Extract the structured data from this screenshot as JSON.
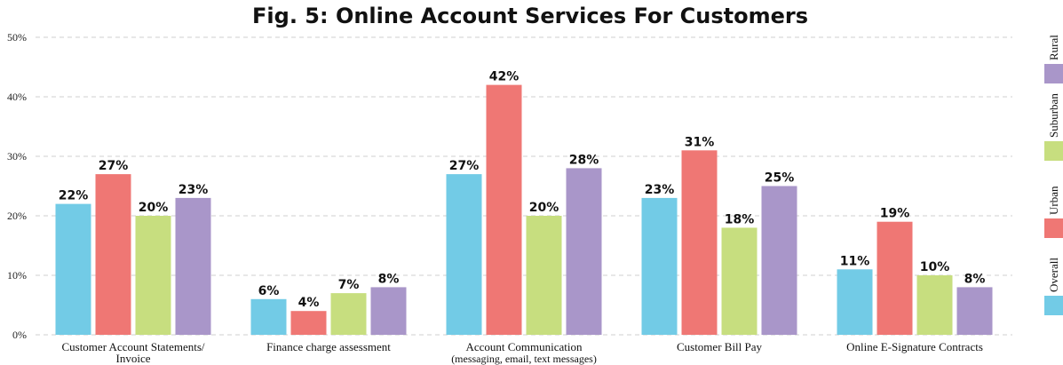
{
  "chart_data": {
    "type": "bar",
    "title": "Fig. 5: Online Account Services For Customers",
    "xlabel": "",
    "ylabel": "",
    "ylim": [
      0,
      50
    ],
    "yticks": [
      "0%",
      "10%",
      "20%",
      "30%",
      "40%",
      "50%"
    ],
    "grid": true,
    "legend_position": "right",
    "categories": [
      {
        "line1": "Customer Account Statements/",
        "line2": "Invoice"
      },
      {
        "line1": "Finance charge assessment",
        "line2": ""
      },
      {
        "line1": "Account Communication",
        "line2": "(messaging, email, text messages)"
      },
      {
        "line1": "Customer Bill Pay",
        "line2": ""
      },
      {
        "line1": "Online E-Signature Contracts",
        "line2": ""
      }
    ],
    "series": [
      {
        "name": "Overall",
        "color": "#72cbe6",
        "values": [
          22,
          6,
          27,
          23,
          11
        ],
        "labels": [
          "22%",
          "6%",
          "27%",
          "23%",
          "11%"
        ]
      },
      {
        "name": "Urban",
        "color": "#ef7774",
        "values": [
          27,
          4,
          42,
          31,
          19
        ],
        "labels": [
          "27%",
          "4%",
          "42%",
          "31%",
          "19%"
        ]
      },
      {
        "name": "Suburban",
        "color": "#c7de7f",
        "values": [
          20,
          7,
          20,
          18,
          10
        ],
        "labels": [
          "20%",
          "7%",
          "20%",
          "18%",
          "10%"
        ]
      },
      {
        "name": "Rural",
        "color": "#a996c9",
        "values": [
          23,
          8,
          28,
          25,
          8
        ],
        "labels": [
          "23%",
          "8%",
          "28%",
          "25%",
          "8%"
        ]
      }
    ]
  }
}
